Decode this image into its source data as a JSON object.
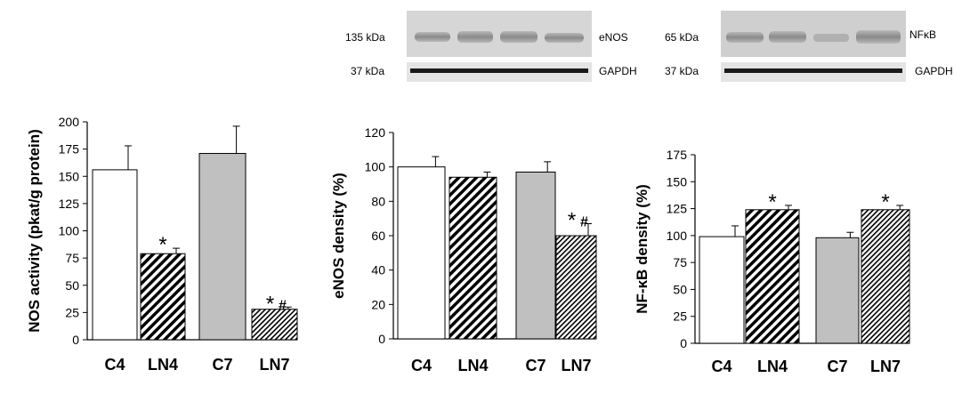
{
  "blots": [
    {
      "kda_top": "135 kDa",
      "label_top": "eNOS",
      "kda_bottom": "37 kDa",
      "label_bottom": "GAPDH"
    },
    {
      "kda_top": "65 kDa",
      "label_top": "NFκB",
      "kda_bottom": "37 kDa",
      "label_bottom": "GAPDH"
    }
  ],
  "colors": {
    "control": "#ffffff",
    "control7": "#c0c0c0",
    "axis": "#000000"
  },
  "chart_data": [
    {
      "type": "bar",
      "ylabel": "NOS activity (pkat/g protein)",
      "categories": [
        "C4",
        "LN4",
        "C7",
        "LN7"
      ],
      "values": [
        156,
        79,
        171,
        28
      ],
      "errors": [
        22,
        5,
        25,
        2
      ],
      "fills": [
        "white",
        "hatch-dense",
        "gray",
        "hatch-fine"
      ],
      "ylim": [
        0,
        200
      ],
      "yticks": [
        0,
        25,
        50,
        75,
        100,
        125,
        150,
        175,
        200
      ],
      "annotations": [
        "",
        "*",
        "",
        "*#"
      ]
    },
    {
      "type": "bar",
      "ylabel": "eNOS density (%)",
      "categories": [
        "C4",
        "LN4",
        "C7",
        "LN7"
      ],
      "values": [
        100,
        94,
        97,
        60
      ],
      "errors": [
        6,
        3,
        6,
        7
      ],
      "fills": [
        "white",
        "hatch-dense",
        "gray",
        "hatch-fine"
      ],
      "ylim": [
        0,
        120
      ],
      "yticks": [
        0,
        20,
        40,
        60,
        80,
        100,
        120
      ],
      "annotations": [
        "",
        "",
        "",
        "*#"
      ]
    },
    {
      "type": "bar",
      "ylabel": "NF-κB density (%)",
      "categories": [
        "C4",
        "LN4",
        "C7",
        "LN7"
      ],
      "values": [
        99,
        124,
        98,
        124
      ],
      "errors": [
        10,
        4,
        5,
        4
      ],
      "fills": [
        "white",
        "hatch-dense",
        "gray",
        "hatch-fine"
      ],
      "ylim": [
        0,
        175
      ],
      "yticks": [
        0,
        25,
        50,
        75,
        100,
        125,
        150,
        175
      ],
      "annotations": [
        "",
        "*",
        "",
        "*"
      ]
    }
  ]
}
